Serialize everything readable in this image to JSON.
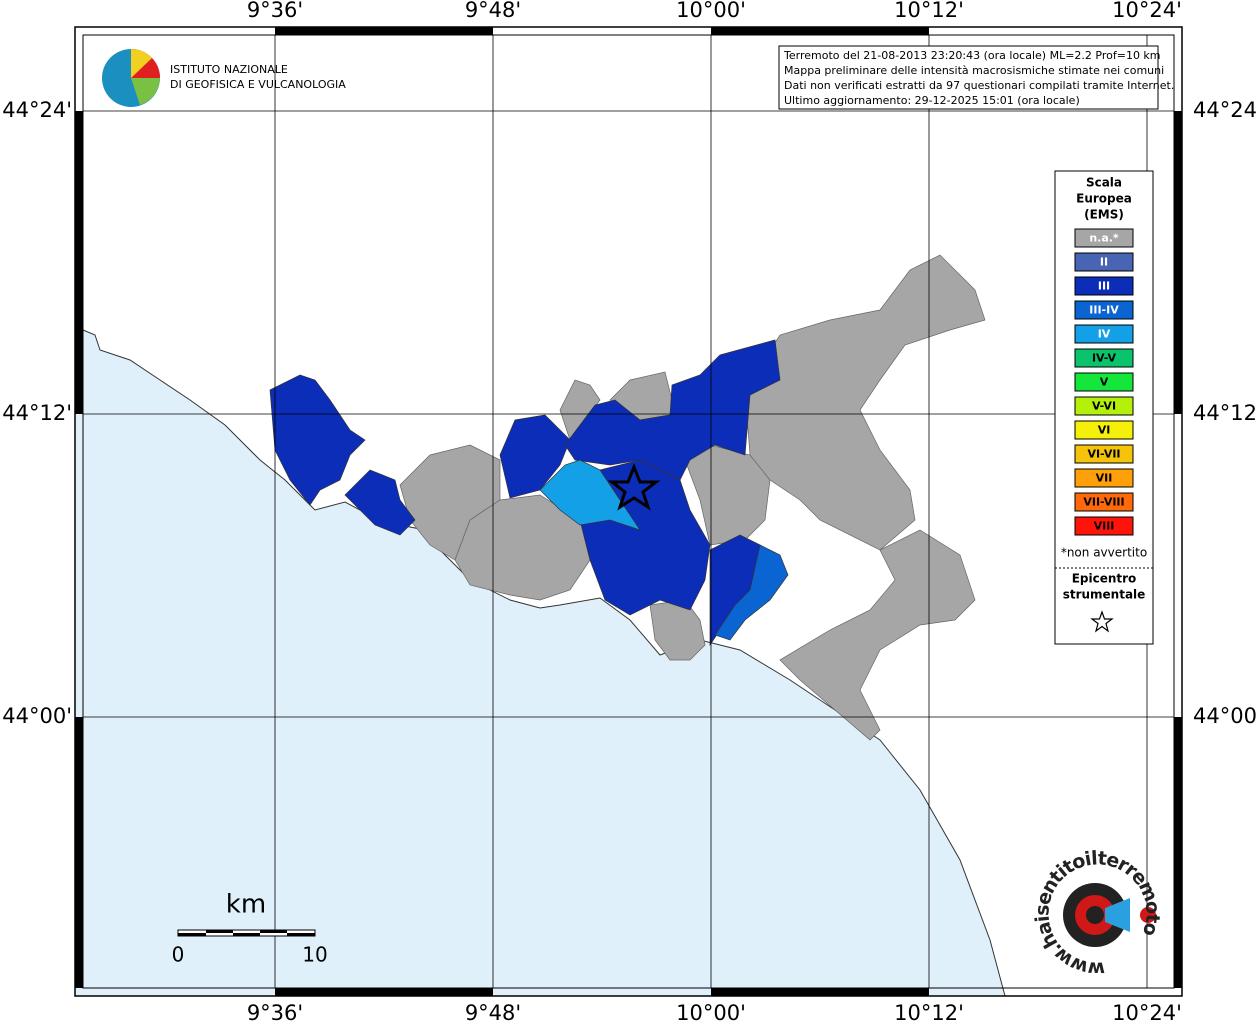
{
  "map": {
    "lon_labels": [
      "9°36'",
      "9°48'",
      "10°00'",
      "10°12'",
      "10°24'"
    ],
    "lat_labels": [
      "44°24'",
      "44°12'",
      "44°00'"
    ],
    "info": [
      "Terremoto del 21-08-2013 23:20:43 (ora locale) ML=2.2 Prof=10 km",
      "Mappa preliminare delle intensità macrosismiche stimate nei comuni",
      "Dati non verificati estratti da 97 questionari compilati tramite Internet.",
      "Ultimo aggiornamento: 29-12-2025 15:01 (ora locale)"
    ],
    "logo": [
      "ISTITUTO NAZIONALE",
      "DI GEOFISICA E VULCANOLOGIA"
    ],
    "legend": {
      "title": [
        "Scala",
        "Europea",
        "(EMS)"
      ],
      "classes": [
        {
          "label": "n.a.*",
          "color": "#a6a6a6"
        },
        {
          "label": "II",
          "color": "#4a64b4"
        },
        {
          "label": "III",
          "color": "#0c2db8"
        },
        {
          "label": "III-IV",
          "color": "#0a64d2"
        },
        {
          "label": "IV",
          "color": "#14a0e6"
        },
        {
          "label": "IV-V",
          "color": "#0ac36a"
        },
        {
          "label": "V",
          "color": "#14e63c"
        },
        {
          "label": "V-VI",
          "color": "#b4f00a"
        },
        {
          "label": "VI",
          "color": "#f5f00a"
        },
        {
          "label": "VI-VII",
          "color": "#f5c30a"
        },
        {
          "label": "VII",
          "color": "#ffa00a"
        },
        {
          "label": "VII-VIII",
          "color": "#ff690a"
        },
        {
          "label": "VIII",
          "color": "#ff140a"
        }
      ],
      "note": "*non avvertito",
      "epicenter": [
        "Epicentro",
        "strumentale"
      ]
    },
    "scalebar": {
      "unit": "km",
      "labels": [
        "0",
        "10"
      ]
    },
    "brand": "www.haisentitoilterremoto.it"
  }
}
